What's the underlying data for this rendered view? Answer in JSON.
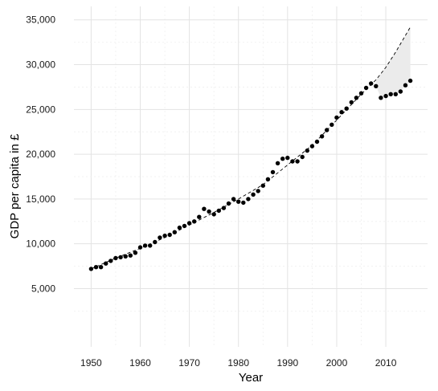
{
  "chart_data": {
    "type": "scatter",
    "title": "",
    "xlabel": "Year",
    "ylabel": "GDP per capita in £",
    "xlim": [
      1946.5,
      2018.5
    ],
    "ylim": [
      -1500,
      36500
    ],
    "x_ticks": [
      1950,
      1960,
      1970,
      1980,
      1990,
      2000,
      2010
    ],
    "x_tick_labels": [
      "1950",
      "1960",
      "1970",
      "1980",
      "1990",
      "2000",
      "2010"
    ],
    "y_ticks": [
      5000,
      10000,
      15000,
      20000,
      25000,
      30000,
      35000
    ],
    "y_tick_labels": [
      "5,000",
      "10,000",
      "15,000",
      "20,000",
      "25,000",
      "30,000",
      "35,000"
    ],
    "grid": true,
    "legend": "none",
    "series": [
      {
        "type": "scatter",
        "color": "#000000",
        "points": [
          [
            1950,
            7200
          ],
          [
            1951,
            7400
          ],
          [
            1952,
            7400
          ],
          [
            1953,
            7800
          ],
          [
            1954,
            8100
          ],
          [
            1955,
            8400
          ],
          [
            1956,
            8500
          ],
          [
            1957,
            8600
          ],
          [
            1958,
            8700
          ],
          [
            1959,
            9000
          ],
          [
            1960,
            9600
          ],
          [
            1961,
            9800
          ],
          [
            1962,
            9800
          ],
          [
            1963,
            10200
          ],
          [
            1964,
            10700
          ],
          [
            1965,
            10900
          ],
          [
            1966,
            11000
          ],
          [
            1967,
            11300
          ],
          [
            1968,
            11800
          ],
          [
            1969,
            12000
          ],
          [
            1970,
            12300
          ],
          [
            1971,
            12500
          ],
          [
            1972,
            13000
          ],
          [
            1973,
            13900
          ],
          [
            1974,
            13600
          ],
          [
            1975,
            13300
          ],
          [
            1976,
            13700
          ],
          [
            1977,
            14000
          ],
          [
            1978,
            14500
          ],
          [
            1979,
            15000
          ],
          [
            1980,
            14700
          ],
          [
            1981,
            14600
          ],
          [
            1982,
            15000
          ],
          [
            1983,
            15500
          ],
          [
            1984,
            15900
          ],
          [
            1985,
            16500
          ],
          [
            1986,
            17200
          ],
          [
            1987,
            18000
          ],
          [
            1988,
            19000
          ],
          [
            1989,
            19500
          ],
          [
            1990,
            19600
          ],
          [
            1991,
            19200
          ],
          [
            1992,
            19200
          ],
          [
            1993,
            19700
          ],
          [
            1994,
            20400
          ],
          [
            1995,
            20900
          ],
          [
            1996,
            21400
          ],
          [
            1997,
            22000
          ],
          [
            1998,
            22700
          ],
          [
            1999,
            23300
          ],
          [
            2000,
            24100
          ],
          [
            2001,
            24700
          ],
          [
            2002,
            25100
          ],
          [
            2003,
            25800
          ],
          [
            2004,
            26300
          ],
          [
            2005,
            26800
          ],
          [
            2006,
            27400
          ],
          [
            2007,
            27900
          ],
          [
            2008,
            27600
          ],
          [
            2009,
            26300
          ],
          [
            2010,
            26500
          ],
          [
            2011,
            26700
          ],
          [
            2012,
            26700
          ],
          [
            2013,
            27000
          ],
          [
            2014,
            27700
          ],
          [
            2015,
            28200
          ]
        ]
      },
      {
        "type": "line",
        "style": "dashed",
        "color": "#000000",
        "note_type": "trend",
        "points": [
          [
            1950,
            7200
          ],
          [
            1955,
            8400
          ],
          [
            1960,
            9500
          ],
          [
            1965,
            10700
          ],
          [
            1970,
            12100
          ],
          [
            1975,
            13500
          ],
          [
            1980,
            15000
          ],
          [
            1985,
            16600
          ],
          [
            1990,
            18800
          ],
          [
            1995,
            21000
          ],
          [
            2000,
            23800
          ],
          [
            2005,
            26700
          ],
          [
            2008,
            28300
          ],
          [
            2010,
            29700
          ],
          [
            2012,
            31400
          ],
          [
            2015,
            34200
          ]
        ]
      }
    ],
    "shaded_gap": {
      "color": "#ebebeb",
      "x_range": [
        2008,
        2015
      ]
    }
  }
}
